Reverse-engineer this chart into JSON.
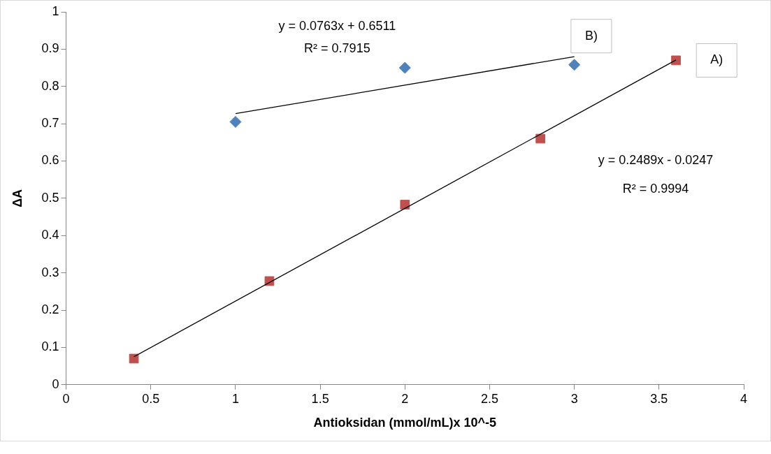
{
  "chart_data": {
    "type": "scatter",
    "xlabel": "Antioksidan (mmol/mL)x 10^-5",
    "ylabel": "ΔA",
    "xlim": [
      0,
      4
    ],
    "xticks": [
      0,
      0.5,
      1,
      1.5,
      2,
      2.5,
      3,
      3.5,
      4
    ],
    "ylim": [
      0,
      1
    ],
    "yticks": [
      0,
      0.1,
      0.2,
      0.3,
      0.4,
      0.5,
      0.6,
      0.7,
      0.8,
      0.9,
      1
    ],
    "grid": false,
    "legend": false,
    "series": [
      {
        "color": "#4f81bd",
        "marker": "diamond",
        "x": [
          1,
          2,
          3
        ],
        "values": [
          0.705,
          0.85,
          0.858
        ]
      },
      {
        "color": "#c0504d",
        "marker": "square",
        "x": [
          0.4,
          1.2,
          2,
          2.8,
          3.6
        ],
        "values": [
          0.07,
          0.278,
          0.483,
          0.66,
          0.87
        ]
      },
      {
        "type": "line",
        "color": "#000000",
        "marker": "none",
        "x": [
          1,
          3
        ],
        "values": [
          0.727,
          0.88
        ]
      },
      {
        "type": "line",
        "color": "#000000",
        "marker": "none",
        "x": [
          0.4,
          3.6
        ],
        "values": [
          0.075,
          0.871
        ]
      }
    ],
    "annotations": [
      "y = 0.0763x + 0.6511",
      "R² = 0.7915",
      "B)",
      "A)",
      "y = 0.2489x - 0.0247",
      "R² = 0.9994"
    ]
  }
}
